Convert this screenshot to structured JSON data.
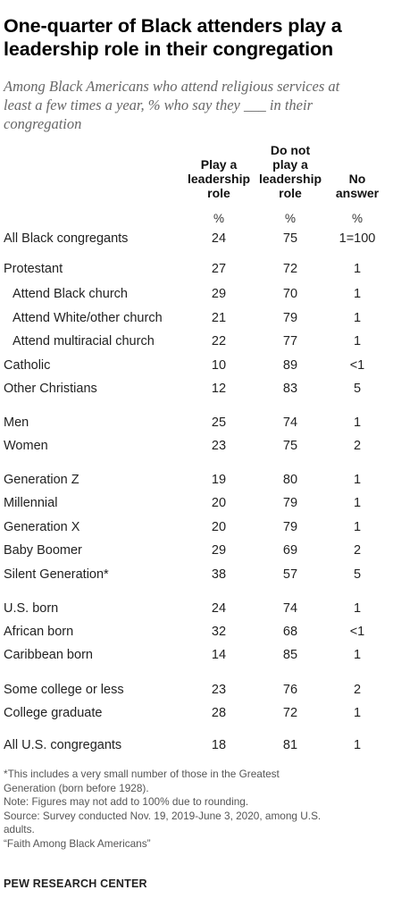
{
  "title_line1": "One-quarter of Black attenders play a",
  "title_line2": "leadership role in their congregation",
  "subtitle_line1": "Among Black Americans who attend religious services at",
  "subtitle_line2": "least a few times a year, % who say they ___ in their",
  "subtitle_line3": "congregation",
  "columns": {
    "c1": [
      "Play a",
      "leadership",
      "role"
    ],
    "c2": [
      "Do not",
      "play a",
      "leadership",
      "role"
    ],
    "c3": [
      "No",
      "answer"
    ]
  },
  "pct_symbol": "%",
  "chart_data": {
    "type": "table",
    "columns": [
      "Play a leadership role",
      "Do not play a leadership role",
      "No answer"
    ],
    "rows": [
      {
        "label": "All Black congregants",
        "values": [
          "24",
          "75",
          "1=100"
        ]
      },
      {
        "label": "Protestant",
        "values": [
          "27",
          "72",
          "1"
        ]
      },
      {
        "label": "Attend Black church",
        "values": [
          "29",
          "70",
          "1"
        ]
      },
      {
        "label": "Attend White/other church",
        "values": [
          "21",
          "79",
          "1"
        ]
      },
      {
        "label": "Attend multiracial church",
        "values": [
          "22",
          "77",
          "1"
        ]
      },
      {
        "label": "Catholic",
        "values": [
          "10",
          "89",
          "<1"
        ]
      },
      {
        "label": "Other Christians",
        "values": [
          "12",
          "83",
          "5"
        ]
      },
      {
        "label": "Men",
        "values": [
          "25",
          "74",
          "1"
        ]
      },
      {
        "label": "Women",
        "values": [
          "23",
          "75",
          "2"
        ]
      },
      {
        "label": "Generation Z",
        "values": [
          "19",
          "80",
          "1"
        ]
      },
      {
        "label": "Millennial",
        "values": [
          "20",
          "79",
          "1"
        ]
      },
      {
        "label": "Generation X",
        "values": [
          "20",
          "79",
          "1"
        ]
      },
      {
        "label": "Baby Boomer",
        "values": [
          "29",
          "69",
          "2"
        ]
      },
      {
        "label": "Silent Generation*",
        "values": [
          "38",
          "57",
          "5"
        ]
      },
      {
        "label": "U.S. born",
        "values": [
          "24",
          "74",
          "1"
        ]
      },
      {
        "label": "African born",
        "values": [
          "32",
          "68",
          "<1"
        ]
      },
      {
        "label": "Caribbean born",
        "values": [
          "14",
          "85",
          "1"
        ]
      },
      {
        "label": "Some college or less",
        "values": [
          "23",
          "76",
          "2"
        ]
      },
      {
        "label": "College graduate",
        "values": [
          "28",
          "72",
          "1"
        ]
      },
      {
        "label": "All U.S. congregants",
        "values": [
          "18",
          "81",
          "1"
        ]
      }
    ]
  },
  "notes": {
    "n1": "*This includes a very small number of those in the Greatest",
    "n2": "Generation (born before 1928).",
    "n3": "Note: Figures may not add to 100% due to rounding.",
    "n4": "Source: Survey conducted Nov. 19, 2019-June 3, 2020, among U.S.",
    "n5": "adults.",
    "n6": "“Faith Among Black Americans”"
  },
  "source_org": "PEW RESEARCH CENTER"
}
